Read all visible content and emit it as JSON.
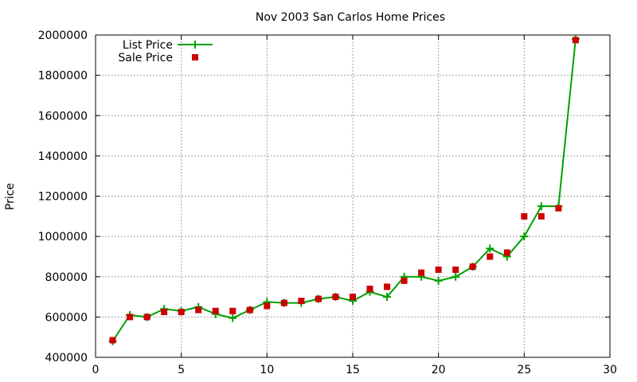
{
  "chart_data": {
    "type": "line",
    "title": "Nov 2003 San Carlos Home Prices",
    "xlabel": "",
    "ylabel": "Price",
    "xlim": [
      0,
      30
    ],
    "ylim": [
      400000,
      2000000
    ],
    "xticks": [
      0,
      5,
      10,
      15,
      20,
      25,
      30
    ],
    "yticks": [
      400000,
      600000,
      800000,
      1000000,
      1200000,
      1400000,
      1600000,
      1800000,
      2000000
    ],
    "grid": true,
    "legend_position": "top-left",
    "series": [
      {
        "name": "List Price",
        "style": "linespoints",
        "color": "#00a000",
        "x": [
          1,
          2,
          3,
          4,
          5,
          6,
          7,
          8,
          9,
          10,
          11,
          12,
          13,
          14,
          15,
          16,
          17,
          18,
          19,
          20,
          21,
          22,
          23,
          24,
          25,
          26,
          27,
          28
        ],
        "y": [
          480000,
          610000,
          600000,
          640000,
          630000,
          650000,
          615000,
          595000,
          635000,
          675000,
          670000,
          670000,
          690000,
          700000,
          680000,
          725000,
          700000,
          800000,
          800000,
          780000,
          800000,
          850000,
          940000,
          900000,
          1000000,
          1150000,
          1150000,
          1980000
        ]
      },
      {
        "name": "Sale Price",
        "style": "points",
        "color": "#cc0000",
        "x": [
          1,
          2,
          3,
          4,
          5,
          6,
          7,
          8,
          9,
          10,
          11,
          12,
          13,
          14,
          15,
          16,
          17,
          18,
          19,
          20,
          21,
          22,
          23,
          24,
          25,
          26,
          27,
          28
        ],
        "y": [
          485000,
          600000,
          600000,
          625000,
          625000,
          635000,
          630000,
          630000,
          635000,
          655000,
          670000,
          680000,
          690000,
          700000,
          700000,
          740000,
          750000,
          780000,
          820000,
          835000,
          835000,
          850000,
          900000,
          920000,
          1100000,
          1100000,
          1140000,
          1975000
        ]
      }
    ]
  }
}
